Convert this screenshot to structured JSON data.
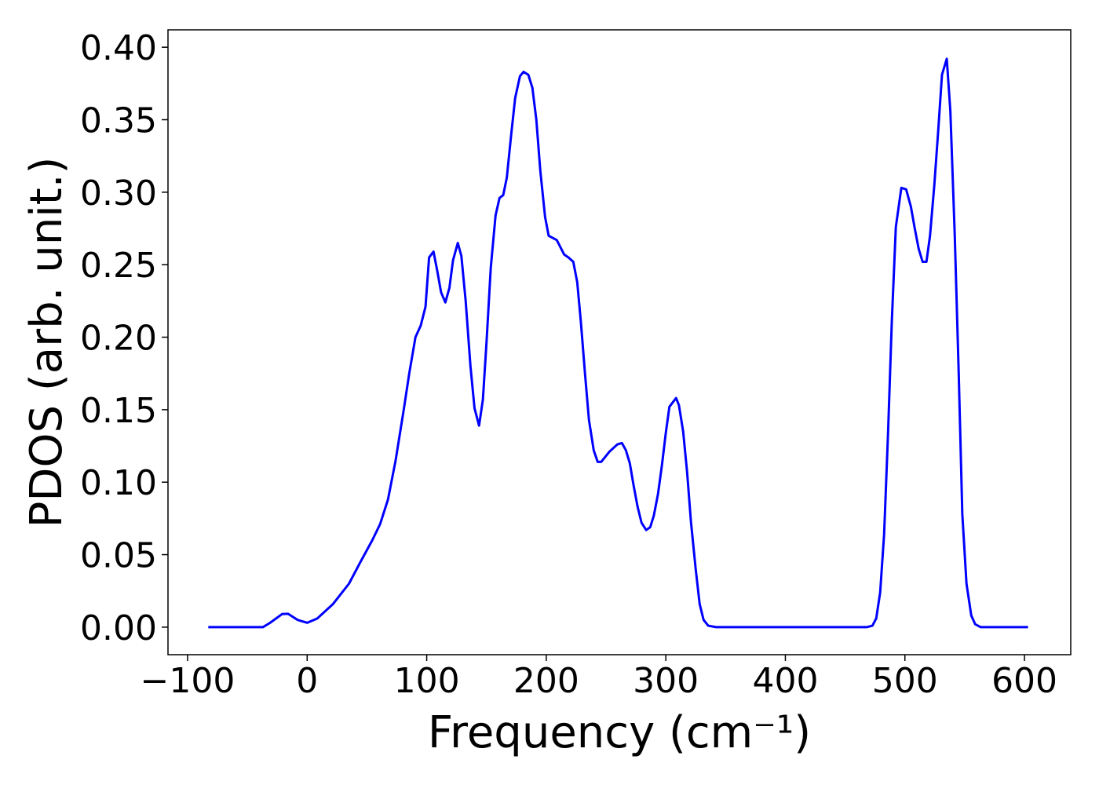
{
  "chart_data": {
    "type": "line",
    "x_label": "Frequency (cm⁻¹)",
    "y_label": "PDOS (arb. unit.)",
    "xlim": [
      -116.4,
      638.7
    ],
    "ylim": [
      -0.019,
      0.412
    ],
    "xticks": [
      {
        "value": -100,
        "label": "−100"
      },
      0,
      100,
      200,
      300,
      400,
      500,
      600
    ],
    "yticks": [
      {
        "value": 0,
        "label": "0.00"
      },
      {
        "value": 0.05,
        "label": "0.05"
      },
      {
        "value": 0.1,
        "label": "0.10"
      },
      {
        "value": 0.15,
        "label": "0.15"
      },
      {
        "value": 0.2,
        "label": "0.20"
      },
      {
        "value": 0.25,
        "label": "0.25"
      },
      {
        "value": 0.3,
        "label": "0.30"
      },
      {
        "value": 0.35,
        "label": "0.35"
      },
      {
        "value": 0.4,
        "label": "0.40"
      }
    ],
    "grid": false,
    "x": [
      -82.7,
      -37,
      -31,
      -21,
      -16,
      -8,
      0,
      8.5,
      21.7,
      35,
      44.6,
      54.5,
      61,
      67.6,
      74,
      80.8,
      85.4,
      90.6,
      95,
      99,
      102,
      105.7,
      109,
      112,
      115.6,
      119,
      122,
      126,
      129,
      132.6,
      136.6,
      140,
      143.8,
      147,
      150,
      153.6,
      157.6,
      160.9,
      164,
      167,
      170.7,
      174,
      178,
      181,
      185,
      188.4,
      191.7,
      195,
      199,
      202,
      208.8,
      215,
      218.6,
      222.6,
      225.9,
      229,
      232.4,
      235.7,
      239.7,
      243,
      246,
      252.8,
      259.4,
      263.3,
      266.6,
      269.9,
      273,
      276.4,
      279.7,
      283.6,
      287,
      290,
      293.5,
      296.8,
      300,
      303,
      308.6,
      311,
      314.5,
      317.8,
      321,
      325,
      328.3,
      331.6,
      335.5,
      342,
      468,
      472.8,
      476,
      479.3,
      482.6,
      485.9,
      489,
      492.4,
      497,
      501,
      505,
      508,
      511.5,
      514.8,
      518,
      521,
      524.6,
      527.9,
      531,
      535,
      538,
      541.7,
      545,
      548,
      551.5,
      555.5,
      558.8,
      563.4,
      603
    ],
    "series": [
      {
        "color": "#0000ff",
        "values": [
          0,
          0,
          0.003,
          0.009,
          0.0092,
          0.005,
          0.003,
          0.006,
          0.016,
          0.03,
          0.045,
          0.06,
          0.071,
          0.088,
          0.115,
          0.15,
          0.175,
          0.2,
          0.208,
          0.221,
          0.255,
          0.259,
          0.245,
          0.231,
          0.224,
          0.234,
          0.253,
          0.265,
          0.256,
          0.225,
          0.18,
          0.151,
          0.139,
          0.157,
          0.196,
          0.248,
          0.284,
          0.296,
          0.298,
          0.31,
          0.34,
          0.365,
          0.38,
          0.383,
          0.381,
          0.372,
          0.35,
          0.315,
          0.283,
          0.27,
          0.267,
          0.257,
          0.255,
          0.252,
          0.238,
          0.21,
          0.175,
          0.143,
          0.122,
          0.114,
          0.114,
          0.121,
          0.126,
          0.127,
          0.122,
          0.113,
          0.098,
          0.083,
          0.072,
          0.067,
          0.069,
          0.077,
          0.092,
          0.112,
          0.134,
          0.152,
          0.158,
          0.153,
          0.135,
          0.107,
          0.073,
          0.04,
          0.016,
          0.005,
          0.001,
          0,
          0,
          0.001,
          0.006,
          0.024,
          0.064,
          0.134,
          0.21,
          0.276,
          0.303,
          0.302,
          0.29,
          0.276,
          0.261,
          0.252,
          0.252,
          0.27,
          0.305,
          0.343,
          0.381,
          0.392,
          0.356,
          0.27,
          0.175,
          0.078,
          0.03,
          0.008,
          0.002,
          0,
          0
        ]
      }
    ]
  }
}
